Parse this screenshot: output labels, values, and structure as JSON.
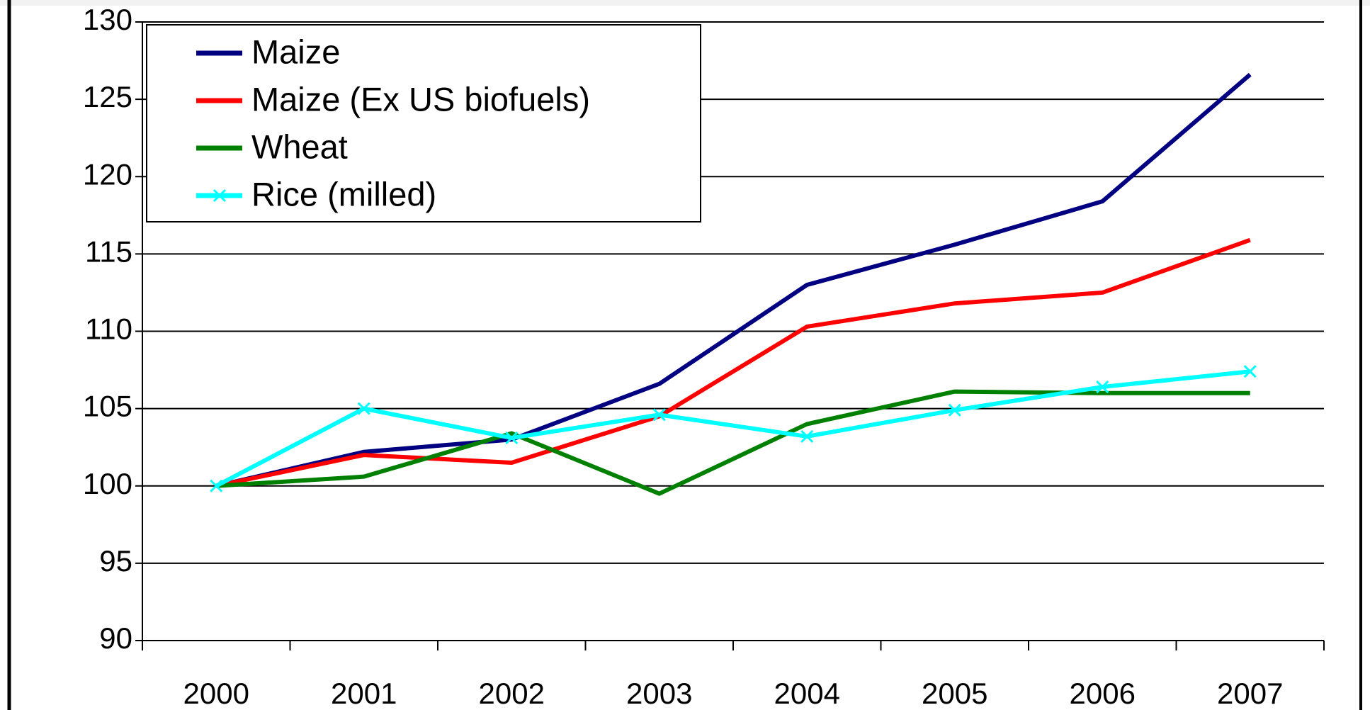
{
  "chart_data": {
    "type": "line",
    "categories": [
      "2000",
      "2001",
      "2002",
      "2003",
      "2004",
      "2005",
      "2006",
      "2007"
    ],
    "series": [
      {
        "name": "Maize",
        "color": "#000080",
        "values": [
          100,
          102.2,
          103,
          106.6,
          113,
          115.6,
          118.4,
          126.6
        ]
      },
      {
        "name": "Maize (Ex US biofuels)",
        "color": "#ff0000",
        "values": [
          100,
          102,
          101.5,
          104.5,
          110.3,
          111.8,
          112.5,
          115.9
        ]
      },
      {
        "name": "Wheat",
        "color": "#008000",
        "values": [
          100,
          100.6,
          103.4,
          99.5,
          104,
          106.1,
          106,
          106
        ]
      },
      {
        "name": "Rice (milled)",
        "color": "#00ffff",
        "values": [
          100,
          105,
          103.1,
          104.6,
          103.2,
          104.9,
          106.4,
          107.4
        ],
        "marker": "x"
      }
    ],
    "ylim": [
      90,
      130
    ],
    "yticks": [
      90,
      95,
      100,
      105,
      110,
      115,
      120,
      125,
      130
    ],
    "grid": true,
    "legend": "upper left"
  }
}
